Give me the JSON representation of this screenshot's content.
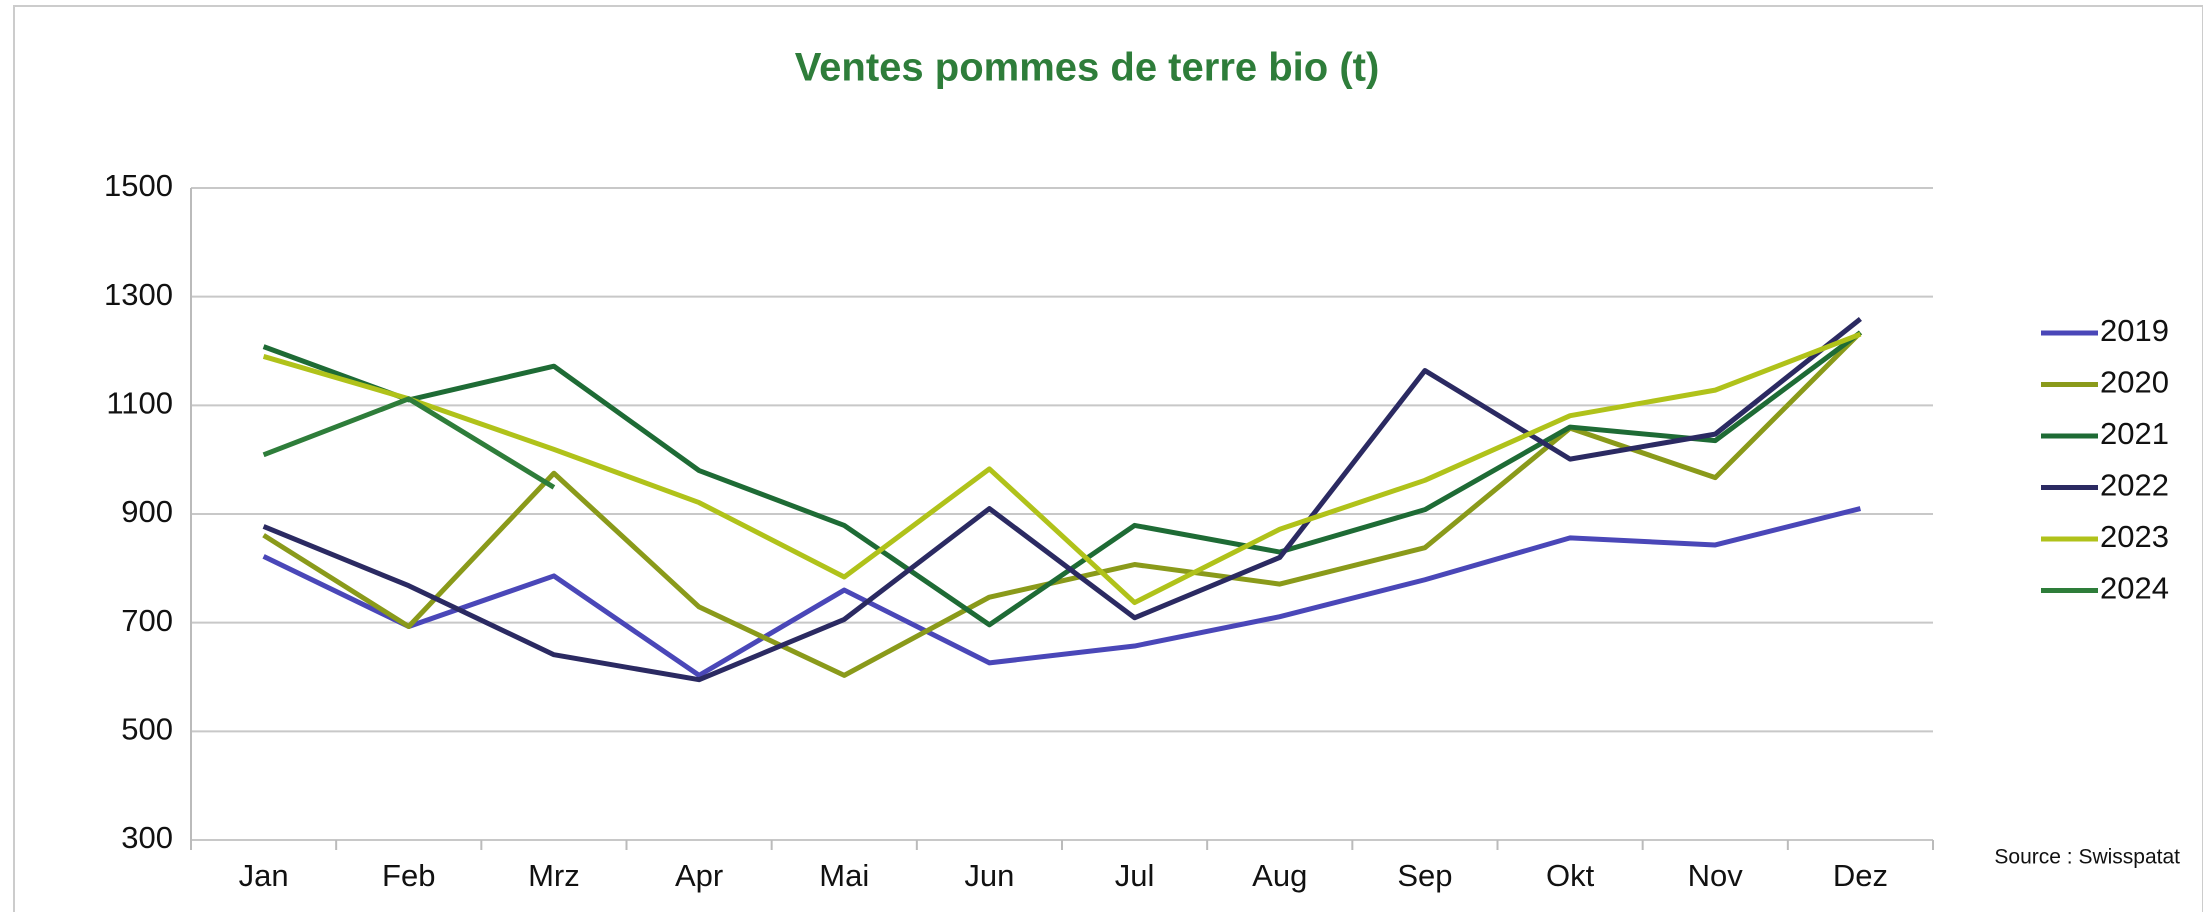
{
  "chart_data": {
    "type": "line",
    "title": "Ventes pommes de terre bio (t)",
    "source": "Source : Swisspatat",
    "categories": [
      "Jan",
      "Feb",
      "Mrz",
      "Apr",
      "Mai",
      "Jun",
      "Jul",
      "Aug",
      "Sep",
      "Okt",
      "Nov",
      "Dez"
    ],
    "series": [
      {
        "name": "2019",
        "color": "#4a47b8",
        "values": [
          822,
          693,
          786,
          603,
          760,
          626,
          657,
          711,
          779,
          856,
          843,
          910
        ]
      },
      {
        "name": "2020",
        "color": "#8a9a1a",
        "values": [
          861,
          693,
          975,
          729,
          603,
          747,
          807,
          771,
          838,
          1058,
          967,
          1234
        ]
      },
      {
        "name": "2021",
        "color": "#1e6b35",
        "values": [
          1208,
          1110,
          1172,
          980,
          879,
          696,
          879,
          830,
          908,
          1060,
          1035,
          1234
        ]
      },
      {
        "name": "2022",
        "color": "#2b2a62",
        "values": [
          877,
          768,
          641,
          595,
          706,
          910,
          709,
          820,
          1164,
          1001,
          1047,
          1259
        ]
      },
      {
        "name": "2023",
        "color": "#b0c21a",
        "values": [
          1190,
          1112,
          1019,
          921,
          784,
          983,
          737,
          872,
          962,
          1081,
          1128,
          1231
        ]
      },
      {
        "name": "2024",
        "color": "#2e7d3a",
        "values": [
          1009,
          1112,
          949,
          null,
          null,
          null,
          null,
          null,
          null,
          null,
          null,
          null
        ]
      }
    ],
    "ylim": [
      300,
      1500
    ],
    "yticks": [
      300,
      500,
      700,
      900,
      1100,
      1300,
      1500
    ],
    "grid": true,
    "legend": "right"
  }
}
